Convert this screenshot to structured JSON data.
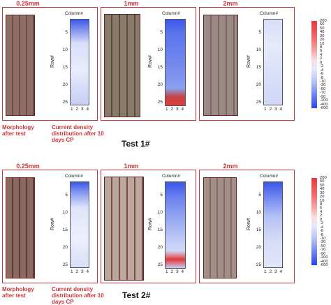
{
  "tests": [
    {
      "label": "Test 1#",
      "panels": [
        {
          "title": "0.25mm",
          "column_label": "Column#",
          "row_label": "Row#"
        },
        {
          "title": "1mm",
          "column_label": "Column#",
          "row_label": "Row#"
        },
        {
          "title": "2mm",
          "column_label": "Column#",
          "row_label": "Row#"
        }
      ],
      "captions": {
        "morphology": "Morphology after test",
        "current": "Current density distribution after 10 days CP"
      }
    },
    {
      "label": "Test 2#",
      "panels": [
        {
          "title": "0.25mm",
          "column_label": "Column#",
          "row_label": "Row#"
        },
        {
          "title": "1mm",
          "column_label": "Column#",
          "row_label": "Row#"
        },
        {
          "title": "2mm",
          "column_label": "Column#",
          "row_label": "Row#"
        }
      ],
      "captions": {
        "morphology": "Morphology after test",
        "current": "Current density distribution after 10 days CP"
      }
    }
  ],
  "row_ticks": [
    "5",
    "10",
    "15",
    "20",
    "25"
  ],
  "col_ticks": [
    "1",
    "2",
    "3",
    "4"
  ],
  "colorbar_ticks": [
    "200",
    "60",
    "50",
    "40",
    "30",
    "20",
    "10",
    "8",
    "6",
    "4",
    "2",
    "0",
    "-2",
    "-4",
    "-6",
    "-8",
    "-10",
    "-30",
    "-50",
    "-70",
    "-90",
    "-200",
    "-400",
    "-600"
  ],
  "colors": {
    "frame": "#c9343a",
    "map_blue": "#3a57e8",
    "map_light": "#e8ecfb",
    "hot": "#e03030"
  }
}
